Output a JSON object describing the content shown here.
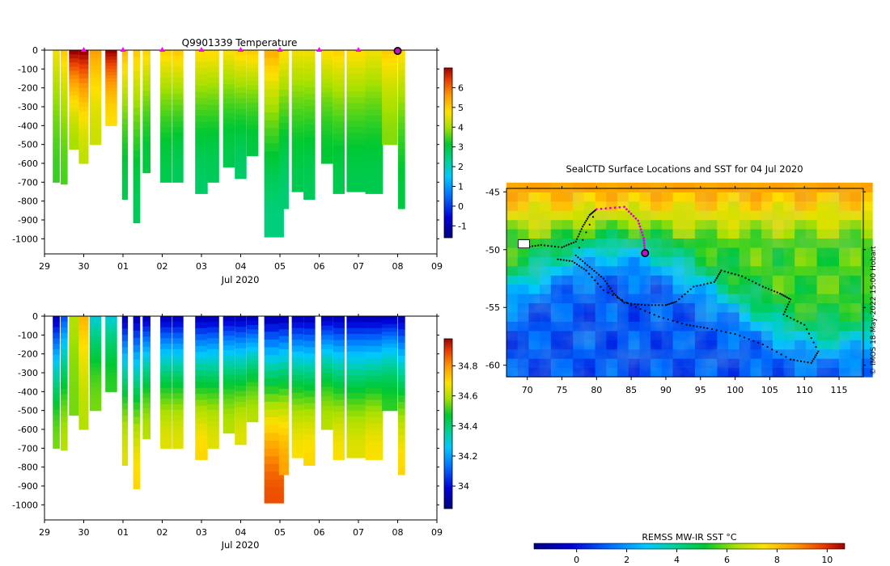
{
  "chart_data": [
    {
      "type": "heatmap",
      "name": "temperature-section",
      "title": "Q9901339  Temperature",
      "xlabel": "Jul 2020",
      "ylabel": "",
      "x_ticks": [
        "29",
        "30",
        "01",
        "02",
        "03",
        "04",
        "05",
        "06",
        "07",
        "08",
        "09"
      ],
      "xlim_days": [
        0,
        10
      ],
      "ylim": [
        0,
        -1080
      ],
      "y_ticks": [
        0,
        -100,
        -200,
        -300,
        -400,
        -500,
        -600,
        -700,
        -800,
        -900,
        -1000
      ],
      "colorbar_ticks": [
        6,
        5,
        4,
        3,
        2,
        1,
        0,
        -1
      ],
      "colorbar_range": [
        -1.6,
        7
      ],
      "profile_markers_day": [
        1.0,
        2.0,
        3.0,
        4.0,
        5.0,
        6.0,
        7.0,
        8.0,
        9.0
      ],
      "profiles": [
        {
          "t": 0.3,
          "w": 0.18,
          "depth": 700,
          "surf": 4.6,
          "deep": 3.4
        },
        {
          "t": 0.5,
          "w": 0.18,
          "depth": 710,
          "surf": 5.0,
          "deep": 3.5
        },
        {
          "t": 0.75,
          "w": 0.25,
          "depth": 525,
          "surf": 7.0,
          "deep": 4.0
        },
        {
          "t": 1.0,
          "w": 0.25,
          "depth": 600,
          "surf": 7.0,
          "deep": 4.2
        },
        {
          "t": 1.3,
          "w": 0.3,
          "depth": 500,
          "surf": 5.5,
          "deep": 4.3
        },
        {
          "t": 1.7,
          "w": 0.3,
          "depth": 400,
          "surf": 7.0,
          "deep": 4.8
        },
        {
          "t": 2.05,
          "w": 0.15,
          "depth": 790,
          "surf": 5.2,
          "deep": 2.9
        },
        {
          "t": 2.35,
          "w": 0.18,
          "depth": 915,
          "surf": 5.0,
          "deep": 2.8
        },
        {
          "t": 2.6,
          "w": 0.2,
          "depth": 650,
          "surf": 4.9,
          "deep": 3.0
        },
        {
          "t": 3.1,
          "w": 0.3,
          "depth": 700,
          "surf": 4.9,
          "deep": 2.9
        },
        {
          "t": 3.4,
          "w": 0.28,
          "depth": 700,
          "surf": 5.0,
          "deep": 2.8
        },
        {
          "t": 4.0,
          "w": 0.32,
          "depth": 760,
          "surf": 4.8,
          "deep": 2.7
        },
        {
          "t": 4.3,
          "w": 0.3,
          "depth": 700,
          "surf": 4.8,
          "deep": 2.8
        },
        {
          "t": 4.7,
          "w": 0.3,
          "depth": 620,
          "surf": 4.7,
          "deep": 2.9
        },
        {
          "t": 5.0,
          "w": 0.3,
          "depth": 680,
          "surf": 4.9,
          "deep": 2.7
        },
        {
          "t": 5.3,
          "w": 0.3,
          "depth": 560,
          "surf": 5.0,
          "deep": 3.0
        },
        {
          "t": 5.85,
          "w": 0.5,
          "depth": 990,
          "surf": 5.3,
          "deep": 2.5
        },
        {
          "t": 6.1,
          "w": 0.25,
          "depth": 840,
          "surf": 4.8,
          "deep": 2.6
        },
        {
          "t": 6.45,
          "w": 0.3,
          "depth": 750,
          "surf": 4.6,
          "deep": 2.9
        },
        {
          "t": 6.75,
          "w": 0.3,
          "depth": 790,
          "surf": 4.6,
          "deep": 2.8
        },
        {
          "t": 7.2,
          "w": 0.3,
          "depth": 600,
          "surf": 4.8,
          "deep": 3.1
        },
        {
          "t": 7.5,
          "w": 0.3,
          "depth": 760,
          "surf": 4.9,
          "deep": 2.9
        },
        {
          "t": 7.95,
          "w": 0.5,
          "depth": 750,
          "surf": 4.8,
          "deep": 2.9
        },
        {
          "t": 8.4,
          "w": 0.45,
          "depth": 760,
          "surf": 4.6,
          "deep": 2.9
        },
        {
          "t": 8.8,
          "w": 0.4,
          "depth": 500,
          "surf": 5.0,
          "deep": 3.8
        },
        {
          "t": 9.1,
          "w": 0.18,
          "depth": 840,
          "surf": 4.8,
          "deep": 3.0
        }
      ]
    },
    {
      "type": "heatmap",
      "name": "salinity-section",
      "title": "",
      "xlabel": "Jul 2020",
      "ylabel": "",
      "x_ticks": [
        "29",
        "30",
        "01",
        "02",
        "03",
        "04",
        "05",
        "06",
        "07",
        "08",
        "09"
      ],
      "xlim_days": [
        0,
        10
      ],
      "ylim": [
        0,
        -1080
      ],
      "y_ticks": [
        0,
        -100,
        -200,
        -300,
        -400,
        -500,
        -600,
        -700,
        -800,
        -900,
        -1000
      ],
      "colorbar_ticks": [
        34.8,
        34.6,
        34.4,
        34.2,
        34
      ],
      "colorbar_range": [
        33.85,
        34.98
      ],
      "profiles": [
        {
          "t": 0.3,
          "w": 0.18,
          "depth": 700,
          "surf": 33.95,
          "deep": 34.55
        },
        {
          "t": 0.5,
          "w": 0.18,
          "depth": 710,
          "surf": 34.1,
          "deep": 34.6
        },
        {
          "t": 0.75,
          "w": 0.25,
          "depth": 525,
          "surf": 34.6,
          "deep": 34.55
        },
        {
          "t": 1.0,
          "w": 0.25,
          "depth": 600,
          "surf": 34.75,
          "deep": 34.6
        },
        {
          "t": 1.3,
          "w": 0.3,
          "depth": 500,
          "surf": 34.3,
          "deep": 34.55
        },
        {
          "t": 1.7,
          "w": 0.3,
          "depth": 400,
          "surf": 34.3,
          "deep": 34.5
        },
        {
          "t": 2.05,
          "w": 0.15,
          "depth": 790,
          "surf": 33.95,
          "deep": 34.65
        },
        {
          "t": 2.35,
          "w": 0.18,
          "depth": 915,
          "surf": 33.95,
          "deep": 34.7
        },
        {
          "t": 2.6,
          "w": 0.2,
          "depth": 650,
          "surf": 33.95,
          "deep": 34.6
        },
        {
          "t": 3.1,
          "w": 0.3,
          "depth": 700,
          "surf": 33.95,
          "deep": 34.65
        },
        {
          "t": 3.4,
          "w": 0.28,
          "depth": 700,
          "surf": 33.95,
          "deep": 34.65
        },
        {
          "t": 4.0,
          "w": 0.32,
          "depth": 760,
          "surf": 33.95,
          "deep": 34.7
        },
        {
          "t": 4.3,
          "w": 0.3,
          "depth": 700,
          "surf": 33.95,
          "deep": 34.65
        },
        {
          "t": 4.7,
          "w": 0.3,
          "depth": 620,
          "surf": 33.95,
          "deep": 34.6
        },
        {
          "t": 5.0,
          "w": 0.3,
          "depth": 680,
          "surf": 33.95,
          "deep": 34.65
        },
        {
          "t": 5.3,
          "w": 0.3,
          "depth": 560,
          "surf": 33.95,
          "deep": 34.6
        },
        {
          "t": 5.85,
          "w": 0.5,
          "depth": 990,
          "surf": 33.95,
          "deep": 34.88
        },
        {
          "t": 6.1,
          "w": 0.25,
          "depth": 840,
          "surf": 33.95,
          "deep": 34.78
        },
        {
          "t": 6.45,
          "w": 0.3,
          "depth": 750,
          "surf": 33.95,
          "deep": 34.68
        },
        {
          "t": 6.75,
          "w": 0.3,
          "depth": 790,
          "surf": 33.95,
          "deep": 34.7
        },
        {
          "t": 7.2,
          "w": 0.3,
          "depth": 600,
          "surf": 33.95,
          "deep": 34.6
        },
        {
          "t": 7.5,
          "w": 0.3,
          "depth": 760,
          "surf": 33.95,
          "deep": 34.68
        },
        {
          "t": 7.95,
          "w": 0.5,
          "depth": 750,
          "surf": 33.95,
          "deep": 34.65
        },
        {
          "t": 8.4,
          "w": 0.45,
          "depth": 760,
          "surf": 33.95,
          "deep": 34.68
        },
        {
          "t": 8.8,
          "w": 0.4,
          "depth": 500,
          "surf": 33.95,
          "deep": 34.5
        },
        {
          "t": 9.1,
          "w": 0.18,
          "depth": 840,
          "surf": 33.95,
          "deep": 34.7
        }
      ]
    },
    {
      "type": "heatmap",
      "name": "sst-map",
      "title": "SealCTD Surface Locations and SST for 04 Jul 2020",
      "xlabel": "",
      "ylabel": "",
      "x_ticks": [
        70,
        75,
        80,
        85,
        90,
        95,
        100,
        105,
        110,
        115
      ],
      "xlim": [
        67,
        118.5
      ],
      "y_ticks": [
        -45,
        -50,
        -55,
        -60
      ],
      "ylim": [
        -61,
        -44.7
      ],
      "colorbar_label": "REMSS MW-IR SST °C",
      "colorbar_ticks": [
        0,
        2,
        4,
        6,
        8,
        10
      ],
      "colorbar_range": [
        -1.7,
        10.7
      ],
      "credit": "© IMOS 18-May-2022 15:00 Hobart",
      "track_path": [
        [
          80,
          -46.5
        ],
        [
          84,
          -46.3
        ],
        [
          86,
          -47.5
        ],
        [
          86.8,
          -49
        ],
        [
          87,
          -50.3
        ]
      ],
      "track_points": [
        [
          69.5,
          -49.8
        ],
        [
          72,
          -49.6
        ],
        [
          75,
          -49.8
        ],
        [
          77,
          -49.3
        ],
        [
          78,
          -48
        ],
        [
          79,
          -47
        ],
        [
          80,
          -46.5
        ],
        [
          77,
          -50.5
        ],
        [
          79,
          -51.5
        ],
        [
          81,
          -52.5
        ],
        [
          82.5,
          -53.8
        ],
        [
          84,
          -54.6
        ],
        [
          87,
          -54.8
        ],
        [
          90,
          -54.8
        ],
        [
          91.5,
          -54.5
        ],
        [
          94,
          -53.2
        ],
        [
          97,
          -52.8
        ],
        [
          98,
          -51.8
        ],
        [
          101,
          -52.3
        ],
        [
          104,
          -53.2
        ],
        [
          106.5,
          -53.8
        ],
        [
          108,
          -54.3
        ],
        [
          107,
          -55.6
        ],
        [
          110,
          -56.5
        ],
        [
          112,
          -58.8
        ],
        [
          111,
          -59.8
        ],
        [
          108,
          -59.5
        ],
        [
          104,
          -58.2
        ],
        [
          100,
          -57.3
        ],
        [
          96,
          -56.8
        ],
        [
          93,
          -56.5
        ],
        [
          89,
          -55.8
        ],
        [
          85,
          -54.8
        ],
        [
          81,
          -53.5
        ],
        [
          78.5,
          -51.8
        ],
        [
          76.5,
          -51
        ],
        [
          74,
          -50.8
        ]
      ],
      "latest_position": [
        87,
        -50.3
      ],
      "start_marker": [
        69.5,
        -49.5
      ]
    }
  ]
}
